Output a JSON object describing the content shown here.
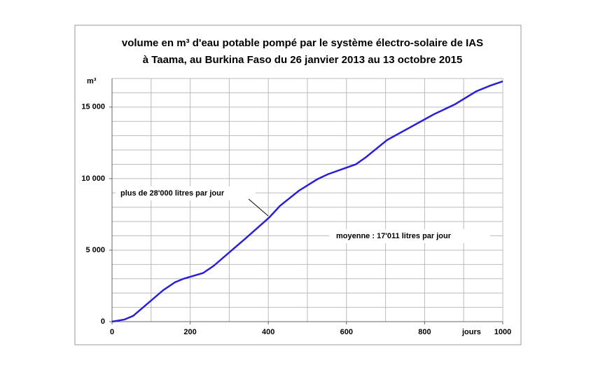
{
  "chart_data": {
    "type": "line",
    "title": [
      "volume en m³ d'eau potable pompé par le système électro-solaire de IAS",
      "à Taama, au Burkina Faso du 26 janvier 2013 au 13 octobre 2015"
    ],
    "y_label": "m³",
    "x_label": "jours",
    "x": [
      0,
      32,
      54,
      131,
      161,
      183,
      233,
      260,
      341,
      403,
      430,
      478,
      525,
      552,
      624,
      650,
      704,
      824,
      878,
      932,
      968,
      1000
    ],
    "series": [
      {
        "color": "#2a1fd6",
        "values": [
          0,
          150,
          400,
          2200,
          2750,
          3000,
          3400,
          3900,
          5800,
          7300,
          8100,
          9150,
          9950,
          10300,
          11000,
          11500,
          12700,
          14500,
          15200,
          16100,
          16500,
          16800
        ]
      }
    ],
    "xlim": [
      0,
      1000
    ],
    "ylim": [
      0,
      17000
    ],
    "xticks": [
      0,
      200,
      400,
      600,
      800,
      1000
    ],
    "yticks": [
      0,
      {
        "value": 5000,
        "label": "5 000"
      },
      {
        "value": 10000,
        "label": "10 000"
      },
      {
        "value": 15000,
        "label": "15 000"
      }
    ],
    "xgrid": [
      100,
      200,
      300,
      400,
      500,
      600,
      700,
      800,
      900,
      1000
    ],
    "ygrid": [
      1000,
      2000,
      3000,
      4000,
      5000,
      6000,
      7000,
      8000,
      9000,
      10000,
      11000,
      12000,
      13000,
      14000,
      15000,
      16000,
      17000
    ],
    "annotations": [
      {
        "text": "plus de 28'000 litres par jour",
        "x": 403,
        "y": 7300
      },
      {
        "text": "moyenne : 17'011 litres par jour"
      }
    ]
  }
}
